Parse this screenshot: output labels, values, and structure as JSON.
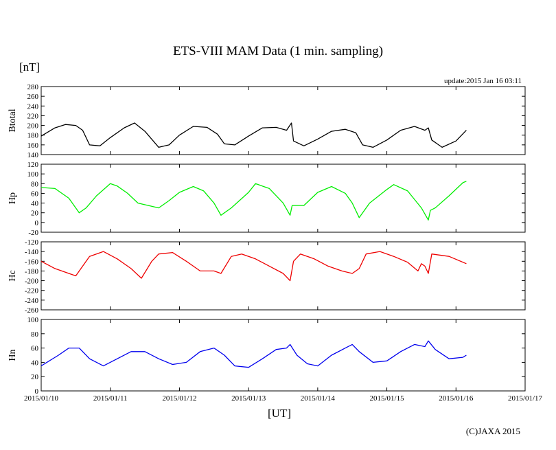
{
  "header": {
    "title": "ETS-VIII MAM Data (1 min. sampling)",
    "unit": "[nT]",
    "update": "update:2015 Jan 16 03:11"
  },
  "footer": {
    "xlabel": "[UT]",
    "copyright": "(C)JAXA 2015"
  },
  "chart_data": [
    {
      "type": "line",
      "ylabel": "Btotal",
      "ylim": [
        140,
        280
      ],
      "yticks": [
        140,
        160,
        180,
        200,
        220,
        240,
        260,
        280
      ],
      "color": "#000000",
      "grid": false,
      "x_unit": "days since 2015/01/10 00:00 UT",
      "xlim": [
        0,
        7
      ],
      "x": [
        0,
        0.2,
        0.35,
        0.5,
        0.6,
        0.7,
        0.85,
        1.0,
        1.2,
        1.35,
        1.5,
        1.7,
        1.85,
        2.0,
        2.2,
        2.4,
        2.55,
        2.65,
        2.8,
        3.0,
        3.2,
        3.4,
        3.55,
        3.62,
        3.65,
        3.8,
        4.0,
        4.2,
        4.4,
        4.55,
        4.65,
        4.8,
        5.0,
        5.2,
        5.4,
        5.55,
        5.6,
        5.65,
        5.8,
        6.0,
        6.15
      ],
      "y": [
        178,
        195,
        202,
        200,
        190,
        160,
        158,
        175,
        195,
        205,
        188,
        155,
        160,
        180,
        198,
        196,
        182,
        162,
        160,
        178,
        195,
        196,
        190,
        205,
        168,
        158,
        172,
        188,
        192,
        185,
        160,
        155,
        170,
        190,
        198,
        190,
        195,
        170,
        155,
        168,
        190
      ]
    },
    {
      "type": "line",
      "ylabel": "Hp",
      "ylim": [
        -20,
        120
      ],
      "yticks": [
        -20,
        0,
        20,
        40,
        60,
        80,
        100,
        120
      ],
      "color": "#00ee00",
      "grid": false,
      "x_unit": "days since 2015/01/10 00:00 UT",
      "xlim": [
        0,
        7
      ],
      "x": [
        0,
        0.2,
        0.4,
        0.55,
        0.65,
        0.8,
        1.0,
        1.1,
        1.25,
        1.4,
        1.55,
        1.7,
        1.85,
        2.0,
        2.2,
        2.35,
        2.5,
        2.6,
        2.75,
        3.0,
        3.1,
        3.3,
        3.5,
        3.6,
        3.63,
        3.8,
        4.0,
        4.2,
        4.4,
        4.5,
        4.6,
        4.75,
        5.0,
        5.1,
        5.3,
        5.5,
        5.6,
        5.63,
        5.7,
        5.9,
        6.1,
        6.15
      ],
      "y": [
        72,
        70,
        50,
        20,
        30,
        55,
        80,
        75,
        60,
        40,
        35,
        30,
        45,
        62,
        74,
        65,
        40,
        15,
        30,
        62,
        80,
        70,
        40,
        15,
        35,
        35,
        62,
        74,
        60,
        40,
        10,
        40,
        68,
        78,
        65,
        30,
        5,
        25,
        30,
        55,
        82,
        85
      ]
    },
    {
      "type": "line",
      "ylabel": "Hc",
      "ylim": [
        -260,
        -120
      ],
      "yticks": [
        -260,
        -240,
        -220,
        -200,
        -180,
        -160,
        -140,
        -120
      ],
      "color": "#ee0000",
      "grid": false,
      "x_unit": "days since 2015/01/10 00:00 UT",
      "xlim": [
        0,
        7
      ],
      "x": [
        0,
        0.2,
        0.4,
        0.5,
        0.7,
        0.9,
        1.1,
        1.3,
        1.45,
        1.6,
        1.7,
        1.9,
        2.1,
        2.3,
        2.5,
        2.6,
        2.75,
        2.9,
        3.1,
        3.3,
        3.5,
        3.6,
        3.65,
        3.75,
        3.95,
        4.15,
        4.35,
        4.5,
        4.6,
        4.7,
        4.9,
        5.1,
        5.3,
        5.45,
        5.5,
        5.55,
        5.6,
        5.65,
        5.9,
        6.15
      ],
      "y": [
        -160,
        -175,
        -185,
        -190,
        -150,
        -140,
        -155,
        -175,
        -195,
        -160,
        -145,
        -142,
        -160,
        -180,
        -180,
        -185,
        -150,
        -145,
        -155,
        -170,
        -185,
        -200,
        -160,
        -145,
        -155,
        -170,
        -180,
        -185,
        -175,
        -145,
        -140,
        -150,
        -162,
        -180,
        -165,
        -170,
        -185,
        -145,
        -150,
        -165
      ]
    },
    {
      "type": "line",
      "ylabel": "Hn",
      "ylim": [
        0,
        100
      ],
      "yticks": [
        0,
        20,
        40,
        60,
        80,
        100
      ],
      "color": "#0000ee",
      "grid": false,
      "x_unit": "days since 2015/01/10 00:00 UT",
      "xlim": [
        0,
        7
      ],
      "x": [
        0,
        0.25,
        0.4,
        0.55,
        0.7,
        0.9,
        1.1,
        1.3,
        1.5,
        1.7,
        1.9,
        2.1,
        2.3,
        2.5,
        2.65,
        2.8,
        3.0,
        3.2,
        3.4,
        3.55,
        3.6,
        3.7,
        3.85,
        4.0,
        4.2,
        4.4,
        4.5,
        4.6,
        4.8,
        5.0,
        5.2,
        5.4,
        5.55,
        5.6,
        5.7,
        5.9,
        6.1,
        6.15
      ],
      "y": [
        35,
        50,
        60,
        60,
        45,
        35,
        45,
        55,
        55,
        45,
        37,
        40,
        55,
        60,
        50,
        35,
        33,
        45,
        58,
        60,
        65,
        50,
        38,
        35,
        50,
        60,
        65,
        55,
        40,
        42,
        55,
        65,
        62,
        70,
        58,
        45,
        47,
        50
      ]
    }
  ],
  "x_axis": {
    "ticks": [
      "2015/01/10",
      "2015/01/11",
      "2015/01/12",
      "2015/01/13",
      "2015/01/14",
      "2015/01/15",
      "2015/01/16",
      "2015/01/17"
    ],
    "tick_positions": [
      0,
      1,
      2,
      3,
      4,
      5,
      6,
      7
    ]
  }
}
